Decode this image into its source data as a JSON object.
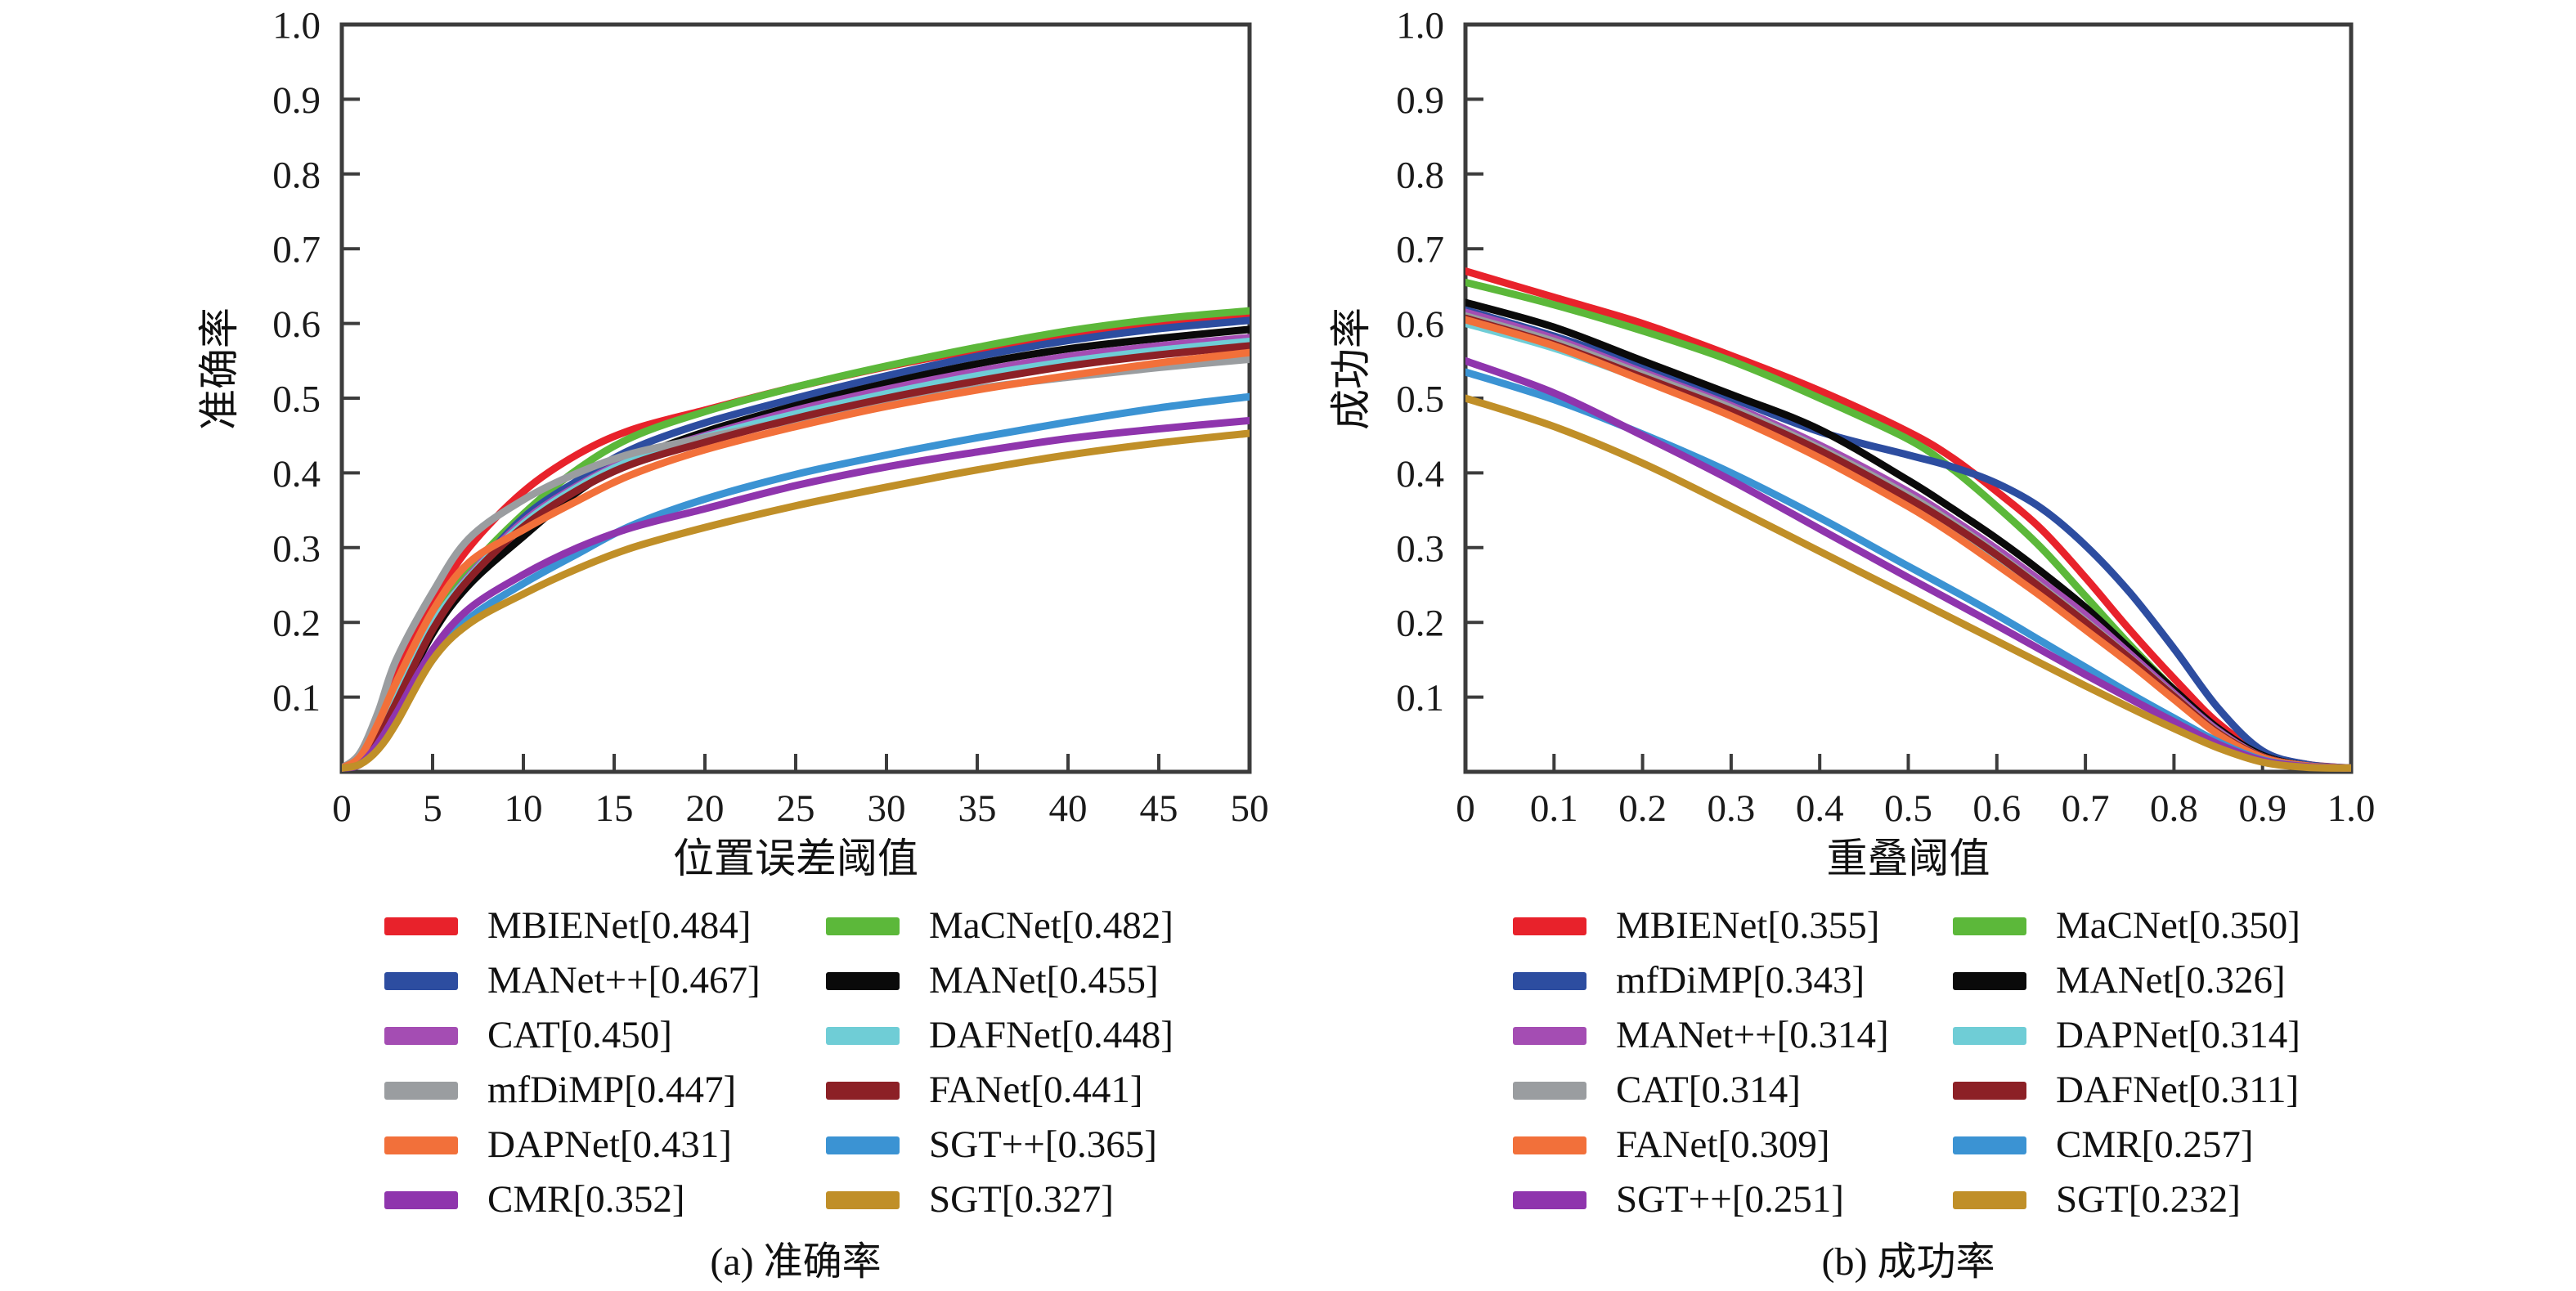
{
  "figure": {
    "background": "#ffffff",
    "axis_color": "#3c3c3c",
    "text_color": "#1a1a1a",
    "curve_width": 9
  },
  "chart_data": [
    {
      "type": "line",
      "panel": "a",
      "caption": "(a) 准确率",
      "xlabel": "位置误差阈值",
      "ylabel": "准确率",
      "xlim": [
        0,
        50
      ],
      "ylim": [
        0,
        1.0
      ],
      "grid": false,
      "legend_position": "below",
      "x_ticks": [
        0,
        5,
        10,
        15,
        20,
        25,
        30,
        35,
        40,
        45,
        50
      ],
      "x_tick_labels": [
        "0",
        "5",
        "10",
        "15",
        "20",
        "25",
        "30",
        "35",
        "40",
        "45",
        "50"
      ],
      "y_ticks": [
        0.1,
        0.2,
        0.3,
        0.4,
        0.5,
        0.6,
        0.7,
        0.8,
        0.9,
        1.0
      ],
      "y_tick_labels": [
        "0.1",
        "0.2",
        "0.3",
        "0.4",
        "0.5",
        "0.6",
        "0.7",
        "0.8",
        "0.9",
        "1.0"
      ],
      "x": [
        0,
        1,
        2,
        3,
        5,
        7,
        10,
        13,
        16,
        20,
        25,
        30,
        35,
        40,
        45,
        50
      ],
      "series": [
        {
          "name": "MBIENet",
          "score": "0.484",
          "label": "MBIENet[0.484]",
          "color": "#e8222b",
          "values": [
            0.005,
            0.02,
            0.07,
            0.13,
            0.225,
            0.3,
            0.375,
            0.425,
            0.458,
            0.484,
            0.515,
            0.542,
            0.565,
            0.585,
            0.6,
            0.61
          ]
        },
        {
          "name": "MaCNet",
          "score": "0.482",
          "label": "MaCNet[0.482]",
          "color": "#5cb83a",
          "values": [
            0.005,
            0.015,
            0.05,
            0.1,
            0.2,
            0.27,
            0.345,
            0.405,
            0.448,
            0.482,
            0.515,
            0.543,
            0.568,
            0.59,
            0.606,
            0.617
          ]
        },
        {
          "name": "MANet++",
          "score": "0.467",
          "label": "MANet++[0.467]",
          "color": "#2d4da0",
          "values": [
            0.005,
            0.015,
            0.045,
            0.095,
            0.19,
            0.26,
            0.34,
            0.39,
            0.432,
            0.467,
            0.5,
            0.53,
            0.556,
            0.577,
            0.593,
            0.604
          ]
        },
        {
          "name": "MANet",
          "score": "0.455",
          "label": "MANet[0.455]",
          "color": "#0a0a0a",
          "values": [
            0.005,
            0.015,
            0.045,
            0.09,
            0.185,
            0.25,
            0.315,
            0.375,
            0.418,
            0.455,
            0.49,
            0.52,
            0.546,
            0.566,
            0.58,
            0.592
          ]
        },
        {
          "name": "CAT",
          "score": "0.450",
          "label": "CAT[0.450]",
          "color": "#a44db3",
          "values": [
            0.005,
            0.015,
            0.045,
            0.095,
            0.195,
            0.262,
            0.335,
            0.383,
            0.419,
            0.45,
            0.484,
            0.512,
            0.536,
            0.556,
            0.57,
            0.581
          ]
        },
        {
          "name": "DAFNet",
          "score": "0.448",
          "label": "DAFNet[0.448]",
          "color": "#6fcdd6",
          "values": [
            0.005,
            0.015,
            0.05,
            0.1,
            0.197,
            0.26,
            0.332,
            0.381,
            0.417,
            0.448,
            0.479,
            0.506,
            0.53,
            0.549,
            0.564,
            0.576
          ]
        },
        {
          "name": "mfDiMP",
          "score": "0.447",
          "label": "mfDiMP[0.447]",
          "color": "#9a9da0",
          "values": [
            0.005,
            0.025,
            0.08,
            0.15,
            0.24,
            0.312,
            0.364,
            0.4,
            0.426,
            0.447,
            0.471,
            0.494,
            0.513,
            0.528,
            0.541,
            0.552
          ]
        },
        {
          "name": "FANet",
          "score": "0.441",
          "label": "FANet[0.441]",
          "color": "#8c2026",
          "values": [
            0.005,
            0.015,
            0.045,
            0.093,
            0.19,
            0.258,
            0.328,
            0.377,
            0.412,
            0.441,
            0.473,
            0.5,
            0.523,
            0.543,
            0.558,
            0.57
          ]
        },
        {
          "name": "DAPNet",
          "score": "0.431",
          "label": "DAPNet[0.431]",
          "color": "#f2703a",
          "values": [
            0.005,
            0.02,
            0.065,
            0.12,
            0.215,
            0.28,
            0.324,
            0.363,
            0.398,
            0.431,
            0.462,
            0.489,
            0.511,
            0.53,
            0.547,
            0.561
          ]
        },
        {
          "name": "SGT++",
          "score": "0.365",
          "label": "SGT++[0.365]",
          "color": "#3b93d3",
          "values": [
            0.005,
            0.01,
            0.035,
            0.07,
            0.15,
            0.205,
            0.252,
            0.292,
            0.33,
            0.365,
            0.398,
            0.424,
            0.447,
            0.468,
            0.487,
            0.502
          ]
        },
        {
          "name": "CMR",
          "score": "0.352",
          "label": "CMR[0.352]",
          "color": "#8f35ad",
          "values": [
            0.005,
            0.01,
            0.038,
            0.078,
            0.163,
            0.218,
            0.264,
            0.3,
            0.327,
            0.352,
            0.383,
            0.408,
            0.428,
            0.446,
            0.459,
            0.47
          ]
        },
        {
          "name": "SGT",
          "score": "0.327",
          "label": "SGT[0.327]",
          "color": "#c08f28",
          "values": [
            0.005,
            0.01,
            0.03,
            0.065,
            0.15,
            0.198,
            0.238,
            0.272,
            0.3,
            0.327,
            0.356,
            0.381,
            0.404,
            0.424,
            0.44,
            0.453
          ]
        }
      ]
    },
    {
      "type": "line",
      "panel": "b",
      "caption": "(b) 成功率",
      "xlabel": "重叠阈值",
      "ylabel": "成功率",
      "xlim": [
        0,
        1.0
      ],
      "ylim": [
        0,
        1.0
      ],
      "grid": false,
      "legend_position": "below",
      "x_ticks": [
        0,
        0.1,
        0.2,
        0.3,
        0.4,
        0.5,
        0.6,
        0.7,
        0.8,
        0.9,
        1.0
      ],
      "x_tick_labels": [
        "0",
        "0.1",
        "0.2",
        "0.3",
        "0.4",
        "0.5",
        "0.6",
        "0.7",
        "0.8",
        "0.9",
        "1.0"
      ],
      "y_ticks": [
        0.1,
        0.2,
        0.3,
        0.4,
        0.5,
        0.6,
        0.7,
        0.8,
        0.9,
        1.0
      ],
      "y_tick_labels": [
        "0.1",
        "0.2",
        "0.3",
        "0.4",
        "0.5",
        "0.6",
        "0.7",
        "0.8",
        "0.9",
        "1.0"
      ],
      "x": [
        0,
        0.1,
        0.2,
        0.3,
        0.4,
        0.5,
        0.55,
        0.6,
        0.65,
        0.7,
        0.75,
        0.8,
        0.85,
        0.9,
        0.95,
        1.0
      ],
      "series": [
        {
          "name": "MBIENet",
          "score": "0.355",
          "label": "MBIENet[0.355]",
          "color": "#e8222b",
          "values": [
            0.67,
            0.635,
            0.6,
            0.557,
            0.51,
            0.455,
            0.42,
            0.375,
            0.325,
            0.26,
            0.19,
            0.125,
            0.065,
            0.025,
            0.01,
            0.005
          ]
        },
        {
          "name": "MaCNet",
          "score": "0.350",
          "label": "MaCNet[0.350]",
          "color": "#5cb83a",
          "values": [
            0.655,
            0.625,
            0.59,
            0.55,
            0.5,
            0.445,
            0.405,
            0.355,
            0.3,
            0.235,
            0.17,
            0.11,
            0.055,
            0.02,
            0.008,
            0.005
          ]
        },
        {
          "name": "mfDiMP",
          "score": "0.343",
          "label": "mfDiMP[0.343]",
          "color": "#2d4da0",
          "values": [
            0.618,
            0.583,
            0.543,
            0.5,
            0.455,
            0.424,
            0.408,
            0.386,
            0.353,
            0.303,
            0.24,
            0.165,
            0.085,
            0.028,
            0.01,
            0.005
          ]
        },
        {
          "name": "MANet",
          "score": "0.326",
          "label": "MANet[0.326]",
          "color": "#0a0a0a",
          "values": [
            0.628,
            0.595,
            0.55,
            0.505,
            0.458,
            0.39,
            0.352,
            0.312,
            0.268,
            0.22,
            0.165,
            0.11,
            0.058,
            0.022,
            0.008,
            0.005
          ]
        },
        {
          "name": "MANet++",
          "score": "0.314",
          "label": "MANet++[0.314]",
          "color": "#a44db3",
          "values": [
            0.615,
            0.58,
            0.535,
            0.49,
            0.437,
            0.375,
            0.338,
            0.298,
            0.255,
            0.21,
            0.158,
            0.105,
            0.055,
            0.02,
            0.008,
            0.005
          ]
        },
        {
          "name": "DAPNet",
          "score": "0.314",
          "label": "DAPNet[0.314]",
          "color": "#6fcdd6",
          "values": [
            0.6,
            0.567,
            0.525,
            0.48,
            0.427,
            0.363,
            0.327,
            0.287,
            0.243,
            0.198,
            0.15,
            0.1,
            0.052,
            0.02,
            0.008,
            0.005
          ]
        },
        {
          "name": "CAT",
          "score": "0.314",
          "label": "CAT[0.314]",
          "color": "#9a9da0",
          "values": [
            0.61,
            0.576,
            0.532,
            0.487,
            0.433,
            0.37,
            0.333,
            0.292,
            0.248,
            0.202,
            0.153,
            0.102,
            0.053,
            0.02,
            0.008,
            0.005
          ]
        },
        {
          "name": "DAFNet",
          "score": "0.311",
          "label": "DAFNet[0.311]",
          "color": "#8c2026",
          "values": [
            0.607,
            0.572,
            0.528,
            0.483,
            0.43,
            0.366,
            0.33,
            0.29,
            0.246,
            0.2,
            0.152,
            0.101,
            0.052,
            0.02,
            0.008,
            0.005
          ]
        },
        {
          "name": "FANet",
          "score": "0.309",
          "label": "FANet[0.309]",
          "color": "#f2703a",
          "values": [
            0.605,
            0.57,
            0.524,
            0.476,
            0.42,
            0.355,
            0.318,
            0.277,
            0.235,
            0.19,
            0.145,
            0.097,
            0.05,
            0.019,
            0.008,
            0.005
          ]
        },
        {
          "name": "CMR",
          "score": "0.257",
          "label": "CMR[0.257]",
          "color": "#3b93d3",
          "values": [
            0.535,
            0.498,
            0.452,
            0.4,
            0.34,
            0.275,
            0.243,
            0.21,
            0.175,
            0.14,
            0.105,
            0.072,
            0.04,
            0.016,
            0.007,
            0.005
          ]
        },
        {
          "name": "SGT++",
          "score": "0.251",
          "label": "SGT++[0.251]",
          "color": "#8f35ad",
          "values": [
            0.55,
            0.507,
            0.45,
            0.39,
            0.325,
            0.26,
            0.228,
            0.196,
            0.163,
            0.13,
            0.098,
            0.067,
            0.037,
            0.015,
            0.007,
            0.005
          ]
        },
        {
          "name": "SGT",
          "score": "0.232",
          "label": "SGT[0.232]",
          "color": "#c08f28",
          "values": [
            0.5,
            0.462,
            0.413,
            0.355,
            0.295,
            0.235,
            0.205,
            0.175,
            0.145,
            0.115,
            0.086,
            0.058,
            0.032,
            0.013,
            0.006,
            0.005
          ]
        }
      ]
    }
  ]
}
